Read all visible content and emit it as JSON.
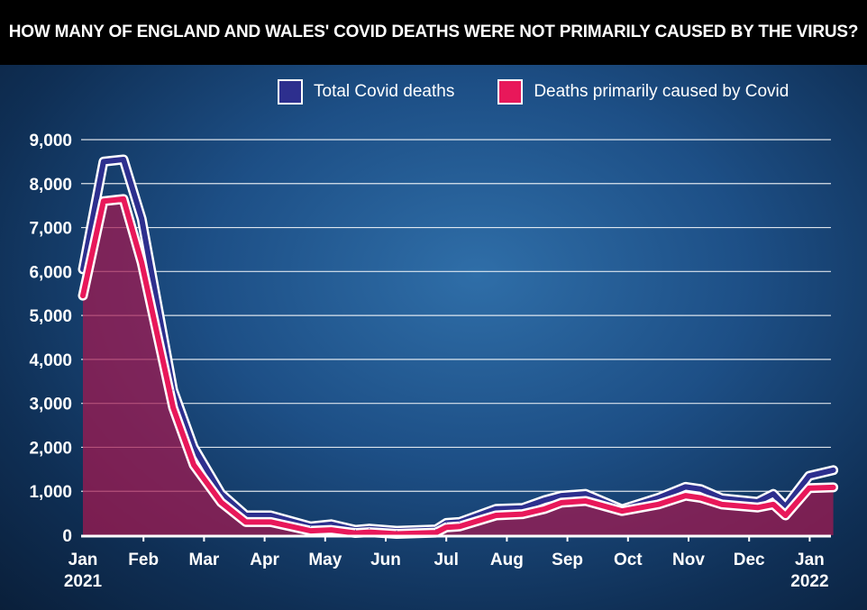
{
  "chart_data": {
    "type": "area",
    "title": "HOW MANY OF ENGLAND AND WALES' COVID DEATHS WERE NOT PRIMARILY CAUSED BY THE VIRUS?",
    "xlabel": "",
    "ylabel": "",
    "ylim": [
      0,
      9000
    ],
    "yticks": [
      "0",
      "1,000",
      "2,000",
      "3,000",
      "4,000",
      "5,000",
      "6,000",
      "7,000",
      "8,000",
      "9,000"
    ],
    "xticks": [
      {
        "label": "Jan",
        "sub": "2021"
      },
      {
        "label": "Feb",
        "sub": ""
      },
      {
        "label": "Mar",
        "sub": ""
      },
      {
        "label": "Apr",
        "sub": ""
      },
      {
        "label": "May",
        "sub": ""
      },
      {
        "label": "Jun",
        "sub": ""
      },
      {
        "label": "Jul",
        "sub": ""
      },
      {
        "label": "Aug",
        "sub": ""
      },
      {
        "label": "Sep",
        "sub": ""
      },
      {
        "label": "Oct",
        "sub": ""
      },
      {
        "label": "Nov",
        "sub": ""
      },
      {
        "label": "Dec",
        "sub": ""
      },
      {
        "label": "Jan",
        "sub": "2022"
      }
    ],
    "grid": true,
    "legend_position": "top-right",
    "x_months_since_jan_2021": [
      0,
      0.34,
      0.67,
      0.97,
      1.49,
      1.83,
      2.28,
      2.69,
      3.1,
      3.76,
      4.1,
      4.5,
      4.73,
      5.18,
      5.83,
      6.0,
      6.22,
      6.82,
      7.26,
      7.63,
      7.9,
      8.3,
      8.9,
      9.5,
      9.95,
      10.2,
      10.55,
      11.14,
      11.4,
      11.6,
      11.99,
      12.39
    ],
    "series": [
      {
        "name": "Total Covid deaths",
        "color": "#2d2f8e",
        "values": [
          6050,
          8500,
          8550,
          7200,
          3300,
          2000,
          950,
          450,
          450,
          200,
          250,
          120,
          150,
          100,
          130,
          280,
          300,
          600,
          620,
          800,
          900,
          940,
          590,
          850,
          1100,
          1050,
          840,
          760,
          940,
          650,
          1350,
          1480
        ]
      },
      {
        "name": "Deaths primarily caused by Covid",
        "color": "#e8185a",
        "values": [
          5450,
          7600,
          7650,
          6200,
          2900,
          1600,
          750,
          300,
          300,
          100,
          120,
          50,
          70,
          30,
          60,
          180,
          200,
          450,
          480,
          600,
          740,
          780,
          550,
          700,
          900,
          850,
          700,
          630,
          700,
          450,
          1070,
          1090
        ]
      }
    ]
  }
}
